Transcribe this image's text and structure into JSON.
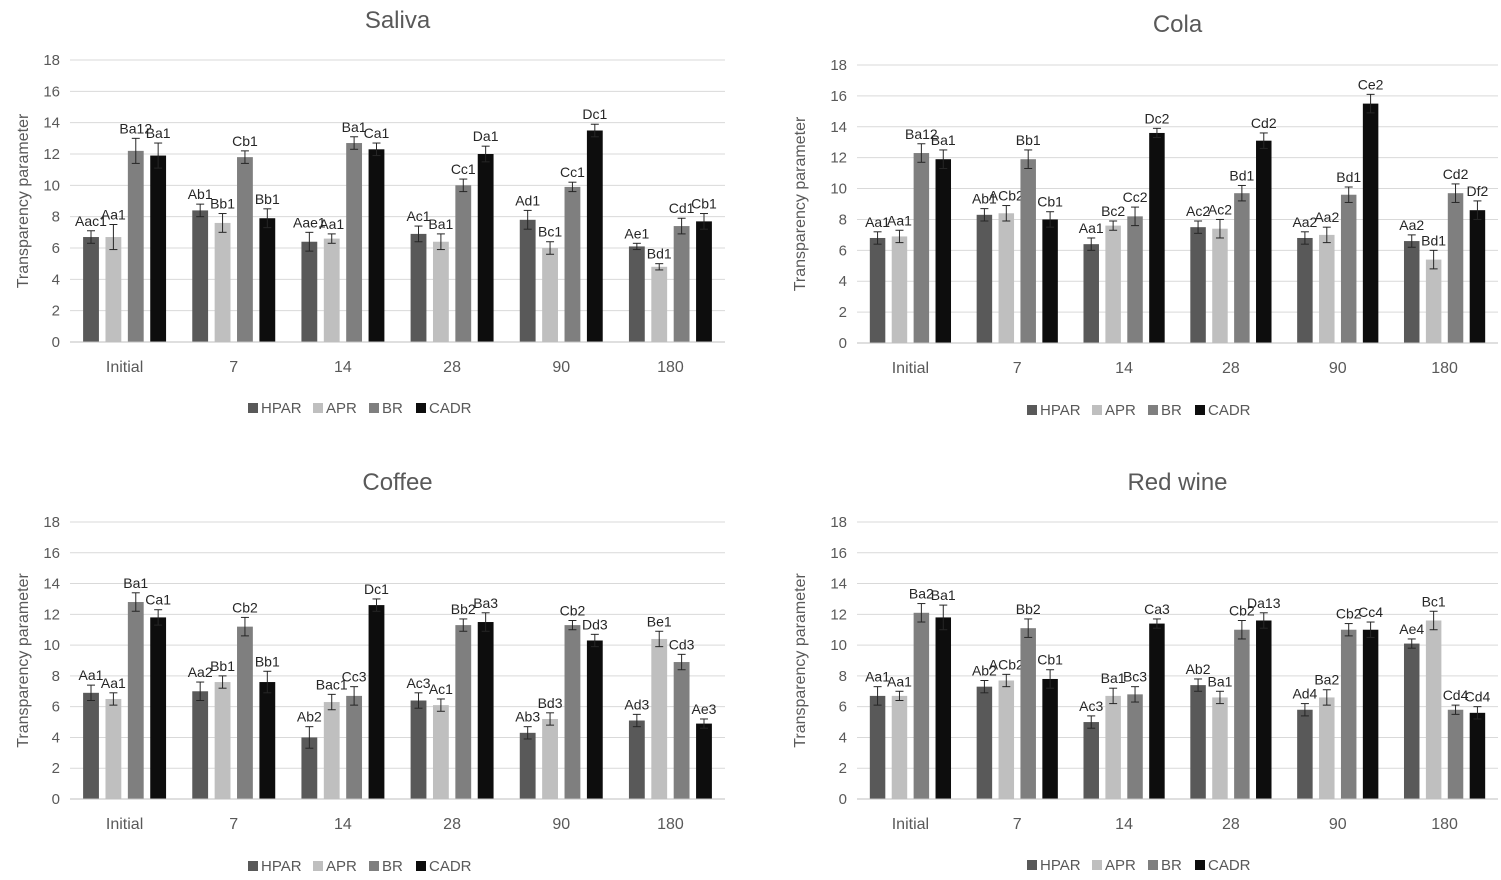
{
  "legend": [
    "HPAR",
    "APR",
    "BR",
    "CADR"
  ],
  "series_colors": [
    "#595959",
    "#bfbfbf",
    "#7f7f7f",
    "#0d0d0d"
  ],
  "chart_data": [
    {
      "type": "bar",
      "title": "Saliva",
      "ylabel": "Transparency parameter",
      "ylim": [
        0,
        18
      ],
      "yticks": [
        0,
        2,
        4,
        6,
        8,
        10,
        12,
        14,
        16,
        18
      ],
      "categories": [
        "Initial",
        "7",
        "14",
        "28",
        "90",
        "180"
      ],
      "legend_position": "bottom",
      "series": [
        {
          "name": "HPAR",
          "values": [
            6.7,
            8.4,
            6.4,
            6.9,
            7.8,
            6.1
          ],
          "errors": [
            0.4,
            0.4,
            0.6,
            0.5,
            0.6,
            0.2
          ],
          "labels": [
            "Aac1",
            "Ab1",
            "Aae1",
            "Ac1",
            "Ad1",
            "Ae1"
          ]
        },
        {
          "name": "APR",
          "values": [
            6.7,
            7.6,
            6.6,
            6.4,
            6.0,
            4.8
          ],
          "errors": [
            0.8,
            0.6,
            0.3,
            0.5,
            0.4,
            0.2
          ],
          "labels": [
            "Aa1",
            "Bb1",
            "Aa1",
            "Ba1",
            "Bc1",
            "Bd1"
          ]
        },
        {
          "name": "BR",
          "values": [
            12.2,
            11.8,
            12.7,
            10.0,
            9.9,
            7.4
          ],
          "errors": [
            0.8,
            0.4,
            0.4,
            0.4,
            0.3,
            0.5
          ],
          "labels": [
            "Ba12",
            "Cb1",
            "Ba1",
            "Cc1",
            "Cc1",
            "Cd1"
          ]
        },
        {
          "name": "CADR",
          "values": [
            11.9,
            7.9,
            12.3,
            12.0,
            13.5,
            7.7
          ],
          "errors": [
            0.8,
            0.6,
            0.4,
            0.5,
            0.4,
            0.5
          ],
          "labels": [
            "Ba1",
            "Bb1",
            "Ca1",
            "Da1",
            "Dc1",
            "Cb1"
          ]
        }
      ]
    },
    {
      "type": "bar",
      "title": "Cola",
      "ylabel": "Transparency parameter",
      "ylim": [
        0,
        18
      ],
      "yticks": [
        0,
        2,
        4,
        6,
        8,
        10,
        12,
        14,
        16,
        18
      ],
      "categories": [
        "Initial",
        "7",
        "14",
        "28",
        "90",
        "180"
      ],
      "legend_position": "bottom",
      "series": [
        {
          "name": "HPAR",
          "values": [
            6.8,
            8.3,
            6.4,
            7.5,
            6.8,
            6.6
          ],
          "errors": [
            0.4,
            0.4,
            0.4,
            0.4,
            0.4,
            0.4
          ],
          "labels": [
            "Aa1",
            "Ab1",
            "Aa1",
            "Ac2",
            "Aa2",
            "Aa2"
          ]
        },
        {
          "name": "APR",
          "values": [
            6.9,
            8.4,
            7.6,
            7.4,
            7.0,
            5.4
          ],
          "errors": [
            0.4,
            0.5,
            0.3,
            0.6,
            0.5,
            0.6
          ],
          "labels": [
            "Aa1",
            "ACb2",
            "Bc2",
            "Ac2",
            "Aa2",
            "Bd1"
          ]
        },
        {
          "name": "BR",
          "values": [
            12.3,
            11.9,
            8.2,
            9.7,
            9.6,
            9.7
          ],
          "errors": [
            0.6,
            0.6,
            0.6,
            0.5,
            0.5,
            0.6
          ],
          "labels": [
            "Ba12",
            "Bb1",
            "Cc2",
            "Bd1",
            "Bd1",
            "Cd2"
          ]
        },
        {
          "name": "CADR",
          "values": [
            11.9,
            8.0,
            13.6,
            13.1,
            15.5,
            8.6
          ],
          "errors": [
            0.6,
            0.5,
            0.3,
            0.5,
            0.6,
            0.6
          ],
          "labels": [
            "Ba1",
            "Cb1",
            "Dc2",
            "Cd2",
            "Ce2",
            "Df2"
          ]
        }
      ]
    },
    {
      "type": "bar",
      "title": "Coffee",
      "ylabel": "Transparency parameter",
      "ylim": [
        0,
        18
      ],
      "yticks": [
        0,
        2,
        4,
        6,
        8,
        10,
        12,
        14,
        16,
        18
      ],
      "categories": [
        "Initial",
        "7",
        "14",
        "28",
        "90",
        "180"
      ],
      "legend_position": "bottom",
      "series": [
        {
          "name": "HPAR",
          "values": [
            6.9,
            7.0,
            4.0,
            6.4,
            4.3,
            5.1
          ],
          "errors": [
            0.5,
            0.6,
            0.7,
            0.5,
            0.4,
            0.4
          ],
          "labels": [
            "Aa1",
            "Aa2",
            "Ab2",
            "Ac3",
            "Ab3",
            "Ad3"
          ]
        },
        {
          "name": "APR",
          "values": [
            6.5,
            7.6,
            6.3,
            6.1,
            5.2,
            10.4
          ],
          "errors": [
            0.4,
            0.4,
            0.5,
            0.4,
            0.4,
            0.5
          ],
          "labels": [
            "Aa1",
            "Bb1",
            "Bac1",
            "Ac1",
            "Bd3",
            "Be1"
          ]
        },
        {
          "name": "BR",
          "values": [
            12.8,
            11.2,
            6.7,
            11.3,
            11.3,
            8.9
          ],
          "errors": [
            0.6,
            0.6,
            0.6,
            0.4,
            0.3,
            0.5
          ],
          "labels": [
            "Ba1",
            "Cb2",
            "Cc3",
            "Bb2",
            "Cb2",
            "Cd3"
          ]
        },
        {
          "name": "CADR",
          "values": [
            11.8,
            7.6,
            12.6,
            11.5,
            10.3,
            4.9
          ],
          "errors": [
            0.5,
            0.7,
            0.4,
            0.6,
            0.4,
            0.3
          ],
          "labels": [
            "Ca1",
            "Bb1",
            "Dc1",
            "Ba3",
            "Dd3",
            "Ae3"
          ]
        }
      ]
    },
    {
      "type": "bar",
      "title": "Red wine",
      "ylabel": "Transparency parameter",
      "ylim": [
        0,
        18
      ],
      "yticks": [
        0,
        2,
        4,
        6,
        8,
        10,
        12,
        14,
        16,
        18
      ],
      "categories": [
        "Initial",
        "7",
        "14",
        "28",
        "90",
        "180"
      ],
      "legend_position": "bottom",
      "series": [
        {
          "name": "HPAR",
          "values": [
            6.7,
            7.3,
            5.0,
            7.4,
            5.8,
            10.1
          ],
          "errors": [
            0.6,
            0.4,
            0.4,
            0.4,
            0.4,
            0.3
          ],
          "labels": [
            "Aa1",
            "Ab2",
            "Ac3",
            "Ab2",
            "Ad4",
            "Ae4"
          ]
        },
        {
          "name": "APR",
          "values": [
            6.7,
            7.7,
            6.7,
            6.6,
            6.6,
            11.6
          ],
          "errors": [
            0.3,
            0.4,
            0.5,
            0.4,
            0.5,
            0.6
          ],
          "labels": [
            "Aa1",
            "ACb2",
            "Ba1",
            "Ba1",
            "Ba2",
            "Bc1"
          ]
        },
        {
          "name": "BR",
          "values": [
            12.1,
            11.1,
            6.8,
            11.0,
            11.0,
            5.8
          ],
          "errors": [
            0.6,
            0.6,
            0.5,
            0.6,
            0.4,
            0.3
          ],
          "labels": [
            "Ba2",
            "Bb2",
            "Bc3",
            "Cb2",
            "Cb2",
            "Cd4"
          ]
        },
        {
          "name": "CADR",
          "values": [
            11.8,
            7.8,
            11.4,
            11.6,
            11.0,
            5.6
          ],
          "errors": [
            0.8,
            0.6,
            0.3,
            0.5,
            0.5,
            0.4
          ],
          "labels": [
            "Ba1",
            "Cb1",
            "Ca3",
            "Da13",
            "Cc4",
            "Cd4"
          ]
        }
      ]
    }
  ]
}
